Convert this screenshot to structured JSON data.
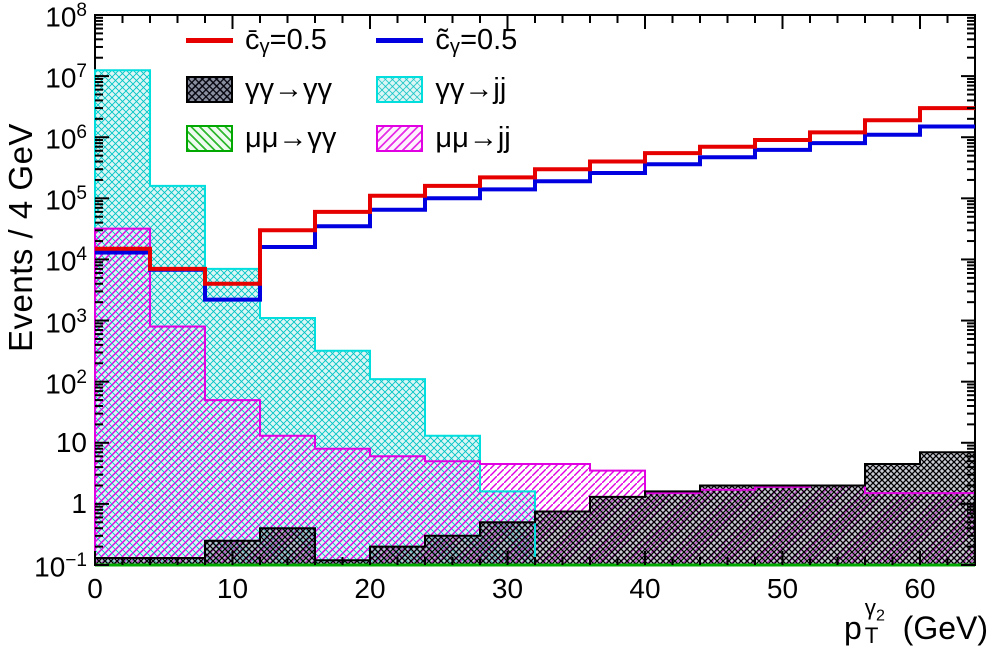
{
  "colors": {
    "red": "#e60000",
    "blue": "#0000e1",
    "cyan": "#00dede",
    "magenta": "#e100e1",
    "green": "#00a800",
    "black": "#000000",
    "frame": "#000000"
  },
  "axes": {
    "y_title": "Events / 4 GeV",
    "x_title": {
      "base": "p",
      "sup": "γ",
      "sup_sub": "2",
      "sub": "T",
      "unit": " (GeV)"
    },
    "x_ticks": [
      0,
      10,
      20,
      30,
      40,
      50,
      60
    ],
    "x_minor_step": 2,
    "y_exponents": [
      -1,
      0,
      1,
      2,
      3,
      4,
      5,
      6,
      7,
      8
    ]
  },
  "legend": {
    "items": [
      {
        "id": "cbar",
        "swatch": "line-red",
        "main": "c̄",
        "sub": "γ",
        "rest": "=0.5"
      },
      {
        "id": "ctilde",
        "swatch": "line-blue",
        "main": "c̃",
        "sub": "γ",
        "rest": "=0.5"
      },
      {
        "id": "aa-aa",
        "swatch": "box-black",
        "label": "γγ→γγ"
      },
      {
        "id": "aa-jj",
        "swatch": "box-cyan",
        "label": "γγ→jj"
      },
      {
        "id": "mm-aa",
        "swatch": "box-green",
        "label": "μμ→γγ"
      },
      {
        "id": "mm-jj",
        "swatch": "box-magenta",
        "label": "μμ→jj"
      }
    ]
  },
  "chart_data": {
    "type": "histogram-step",
    "title": "",
    "xlabel": "p_T^{gamma2} (GeV)",
    "ylabel": "Events / 4 GeV",
    "xlim": [
      0,
      64
    ],
    "ylim": [
      0.1,
      100000000
    ],
    "yscale": "log",
    "bin_width": 4,
    "bin_edges_note": "16 bins of 4 GeV from 0 to 64",
    "legend_position": "top-left-inside",
    "grid": false,
    "series": [
      {
        "id": "aa-jj",
        "name": "γγ→jj",
        "style": "filled-hatched",
        "color": "#00dede",
        "fill_pattern": "pat-cyan",
        "line_width": 2,
        "values": [
          12500000,
          160000,
          7000,
          1100,
          320,
          110,
          13,
          1.6,
          null,
          null,
          null,
          null,
          null,
          null,
          null,
          null
        ]
      },
      {
        "id": "mm-jj",
        "name": "μμ→jj",
        "style": "filled-hatched",
        "color": "#e100e1",
        "fill_pattern": "pat-magenta",
        "line_width": 2,
        "values": [
          32000,
          800,
          50,
          13,
          8,
          6,
          5,
          4.5,
          4.5,
          3.5,
          1.5,
          1.7,
          1.9,
          2.0,
          1.5,
          1.5
        ]
      },
      {
        "id": "aa-aa",
        "name": "γγ→γγ",
        "style": "filled-hatched",
        "color": "#000000",
        "fill_pattern": "pat-black",
        "line_width": 2,
        "values": [
          0.13,
          0.13,
          0.25,
          0.4,
          0.12,
          0.2,
          0.3,
          0.5,
          0.75,
          1.3,
          1.6,
          2.0,
          2.0,
          2.0,
          4.5,
          7.0
        ]
      },
      {
        "id": "mm-aa",
        "name": "μμ→γγ",
        "style": "filled-hatched",
        "color": "#00a800",
        "fill_pattern": "pat-green",
        "line_width": 3,
        "values": [
          0.1,
          0.1,
          0.1,
          0.1,
          0.1,
          0.1,
          0.1,
          0.1,
          0.1,
          0.1,
          0.1,
          0.1,
          0.1,
          0.1,
          0.1,
          0.1
        ]
      },
      {
        "id": "ctilde",
        "name": "c̃_γ=0.5",
        "style": "line",
        "color": "#0000e1",
        "fill_pattern": null,
        "line_width": 4,
        "values": [
          13000,
          6800,
          2200,
          16000,
          35000,
          65000,
          100000,
          140000,
          190000,
          260000,
          360000,
          470000,
          620000,
          800000,
          1100000,
          1500000
        ]
      },
      {
        "id": "cbar",
        "name": "c̄_γ=0.5",
        "style": "line",
        "color": "#e60000",
        "fill_pattern": null,
        "line_width": 4,
        "values": [
          15000,
          7000,
          4000,
          30000,
          60000,
          110000,
          160000,
          220000,
          300000,
          400000,
          550000,
          700000,
          900000,
          1200000,
          1900000,
          3000000
        ]
      }
    ]
  }
}
